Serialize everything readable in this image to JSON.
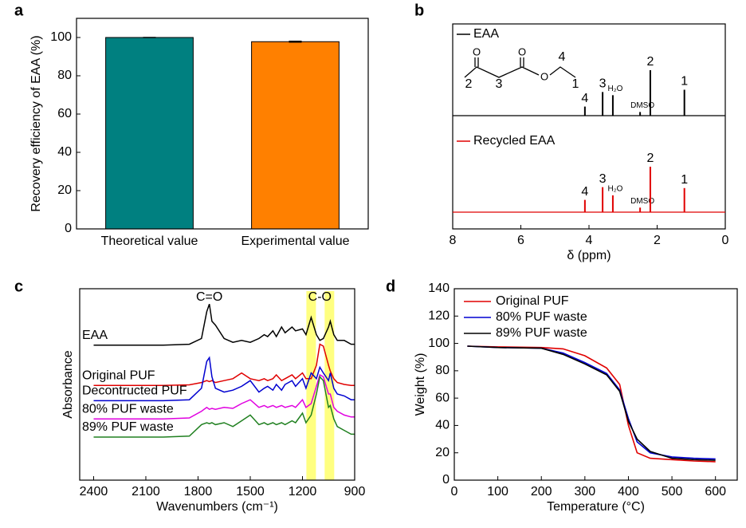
{
  "chart_data": [
    {
      "panel_label": "a",
      "type": "bar",
      "ylabel": "Recovery efficiency of EAA (%)",
      "categories": [
        "Theoretical value",
        "Experimental value"
      ],
      "values": [
        100,
        97.8
      ],
      "errors": [
        0.1,
        0.3
      ],
      "colors": [
        "#008080",
        "#ff8000"
      ],
      "ylim": [
        0,
        110
      ],
      "yticks": [
        0,
        20,
        40,
        60,
        80,
        100
      ]
    },
    {
      "panel_label": "b",
      "type": "nmr",
      "xlabel": "δ (ppm)",
      "xlim": [
        8,
        0
      ],
      "xticks": [
        8,
        6,
        4,
        2,
        0
      ],
      "structure_labels": [
        "2",
        "3",
        "4",
        "1"
      ],
      "series": [
        {
          "name": "EAA",
          "color": "#000000",
          "x": [
            4.12,
            3.6,
            3.3,
            2.5,
            2.2,
            1.2
          ],
          "values": [
            0.2,
            0.52,
            0.45,
            0.08,
            1,
            0.57
          ],
          "peak_labels": [
            "4",
            "3",
            "H₂O",
            "DMSO",
            "2",
            "1"
          ]
        },
        {
          "name": "Recycled EAA",
          "color": "#e00000",
          "x": [
            4.12,
            3.6,
            3.3,
            2.5,
            2.2,
            1.2
          ],
          "values": [
            0.27,
            0.55,
            0.37,
            0.1,
            1,
            0.53
          ],
          "peak_labels": [
            "4",
            "3",
            "H₂O",
            "DMSO",
            "2",
            "1"
          ]
        }
      ]
    },
    {
      "panel_label": "c",
      "type": "ir",
      "xlabel": "Wavenumbers (cm⁻¹)",
      "ylabel": "Absorbance",
      "xlim": [
        2480,
        900
      ],
      "ylim": [
        0,
        10
      ],
      "xticks": [
        2400,
        2100,
        1800,
        1500,
        1200,
        900
      ],
      "annotations": [
        "C=O",
        "C-O"
      ],
      "highlight_bands": [
        1150,
        1045
      ],
      "highlight_color": "#ffff80",
      "x": [
        2400,
        2200,
        2000,
        1850,
        1780,
        1750,
        1735,
        1720,
        1700,
        1650,
        1600,
        1550,
        1500,
        1450,
        1420,
        1400,
        1370,
        1350,
        1320,
        1300,
        1260,
        1240,
        1200,
        1180,
        1150,
        1120,
        1100,
        1080,
        1050,
        1040,
        1020,
        1000,
        960,
        920,
        900
      ],
      "series": [
        {
          "name": "EAA",
          "color": "#000000",
          "values": [
            7.05,
            7.05,
            7.05,
            7.1,
            7.4,
            8.8,
            9.2,
            8.3,
            8.1,
            7.4,
            7.2,
            7.3,
            7.2,
            7.4,
            7.6,
            7.5,
            7.8,
            7.5,
            8.0,
            7.7,
            8.0,
            7.8,
            7.9,
            7.6,
            8.5,
            7.6,
            7.3,
            7.4,
            8.0,
            8.3,
            7.6,
            7.3,
            7.3,
            7.1,
            7.1
          ]
        },
        {
          "name": "Original PUF",
          "color": "#e00000",
          "values": [
            4.95,
            4.95,
            4.95,
            4.98,
            5.1,
            5.2,
            5.15,
            5.2,
            5.1,
            5.2,
            5.3,
            5.6,
            5.3,
            5.2,
            5.3,
            5.2,
            5.3,
            5.5,
            5.2,
            5.3,
            5.5,
            5.3,
            5.6,
            5.3,
            5.3,
            6.0,
            7.1,
            7.0,
            6.0,
            5.7,
            5.3,
            5.1,
            5.0,
            4.95,
            4.95
          ]
        },
        {
          "name": "Decontructed PUF",
          "color": "#0000d0",
          "values": [
            4.15,
            4.15,
            4.15,
            4.2,
            4.8,
            6.2,
            6.4,
            5.4,
            4.8,
            4.6,
            4.7,
            4.9,
            5.2,
            4.6,
            4.8,
            4.9,
            4.7,
            5.0,
            4.7,
            5.0,
            5.2,
            4.9,
            5.3,
            4.8,
            5.6,
            5.3,
            5.9,
            5.6,
            5.2,
            5.6,
            4.8,
            4.5,
            4.4,
            4.2,
            4.2
          ]
        },
        {
          "name": "80% PUF waste",
          "color": "#e000e0",
          "values": [
            3.2,
            3.2,
            3.2,
            3.25,
            3.6,
            3.8,
            3.7,
            3.75,
            3.7,
            3.8,
            3.75,
            4.0,
            4.2,
            3.8,
            3.9,
            3.8,
            3.9,
            3.8,
            3.9,
            3.8,
            3.9,
            3.8,
            4.2,
            3.8,
            4.0,
            4.9,
            5.5,
            5.4,
            4.5,
            4.5,
            3.8,
            3.6,
            3.4,
            3.3,
            3.3
          ]
        },
        {
          "name": "89% PUF waste",
          "color": "#208020",
          "values": [
            2.25,
            2.25,
            2.25,
            2.3,
            2.9,
            3.0,
            2.95,
            3.0,
            2.9,
            3.0,
            2.8,
            3.1,
            3.4,
            2.9,
            3.0,
            2.9,
            3.0,
            2.9,
            3.0,
            2.9,
            3.1,
            3.0,
            3.5,
            3.0,
            3.4,
            4.5,
            5.4,
            5.2,
            3.8,
            3.9,
            3.2,
            2.8,
            2.6,
            2.4,
            2.4
          ]
        }
      ]
    },
    {
      "panel_label": "d",
      "type": "line",
      "xlabel": "Temperature (°C)",
      "ylabel": "Weight (%)",
      "xlim": [
        0,
        650
      ],
      "ylim": [
        0,
        140
      ],
      "xticks": [
        0,
        100,
        200,
        300,
        400,
        500,
        600
      ],
      "yticks": [
        0,
        20,
        40,
        60,
        80,
        100,
        120,
        140
      ],
      "legend": "upper left",
      "x": [
        30,
        100,
        200,
        250,
        300,
        350,
        380,
        400,
        420,
        450,
        500,
        550,
        600
      ],
      "series": [
        {
          "name": "Original PUF",
          "color": "#e00000",
          "values": [
            98,
            97.5,
            97,
            96,
            91,
            82,
            70,
            40,
            20,
            16,
            15,
            14,
            13.5
          ]
        },
        {
          "name": "80% PUF waste",
          "color": "#0000d0",
          "values": [
            98,
            97,
            96.5,
            93,
            86,
            78,
            66,
            45,
            28,
            20,
            17,
            16,
            15.5
          ]
        },
        {
          "name": "89% PUF waste",
          "color": "#000000",
          "values": [
            98,
            97,
            96.5,
            92,
            85,
            77,
            65,
            43,
            30,
            21,
            16,
            15,
            14.5
          ]
        }
      ]
    }
  ]
}
